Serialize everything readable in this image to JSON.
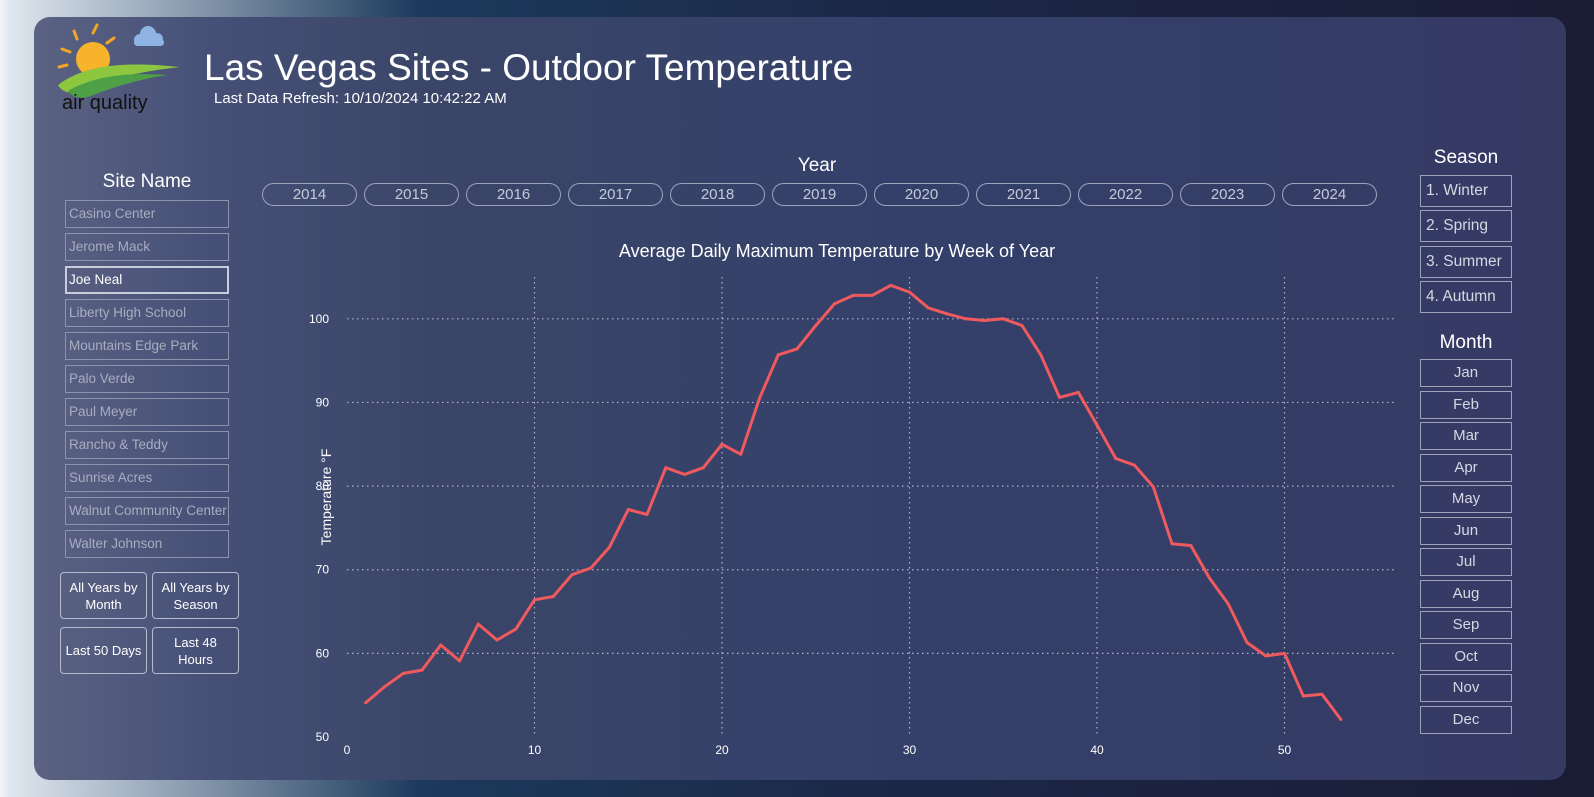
{
  "header": {
    "logo_text": "air quality",
    "title": "Las Vegas Sites - Outdoor Temperature",
    "refresh": "Last Data Refresh: 10/10/2024 10:42:22 AM"
  },
  "site_filter": {
    "label": "Site Name",
    "selected": "Joe Neal",
    "items": [
      "Casino Center",
      "Jerome Mack",
      "Joe Neal",
      "Liberty High School",
      "Mountains Edge Park",
      "Palo Verde",
      "Paul Meyer",
      "Rancho & Teddy",
      "Sunrise Acres",
      "Walnut Community Center",
      "Walter Johnson"
    ]
  },
  "nav_buttons": [
    "All Years by Month",
    "All Years by Season",
    "Last 50 Days",
    "Last 48 Hours"
  ],
  "year_filter": {
    "label": "Year",
    "items": [
      "2014",
      "2015",
      "2016",
      "2017",
      "2018",
      "2019",
      "2020",
      "2021",
      "2022",
      "2023",
      "2024"
    ]
  },
  "season_filter": {
    "label": "Season",
    "items": [
      "1. Winter",
      "2. Spring",
      "3. Summer",
      "4. Autumn"
    ]
  },
  "month_filter": {
    "label": "Month",
    "items": [
      "Jan",
      "Feb",
      "Mar",
      "Apr",
      "May",
      "Jun",
      "Jul",
      "Aug",
      "Sep",
      "Oct",
      "Nov",
      "Dec"
    ]
  },
  "colors": {
    "line": "#f05a5e",
    "grid": "#aeb3c6",
    "text": "#ffffff"
  },
  "chart_data": {
    "type": "line",
    "title": "Average Daily Maximum Temperature by Week of Year",
    "xlabel": "",
    "ylabel": "Temperature °F",
    "xlim": [
      0,
      56
    ],
    "ylim": [
      50,
      105
    ],
    "xticks": [
      0,
      10,
      20,
      30,
      40,
      50
    ],
    "yticks": [
      50,
      60,
      70,
      80,
      90,
      100
    ],
    "grid": "dotted",
    "series": [
      {
        "x": [
          1,
          2,
          3,
          4,
          5,
          6,
          7,
          8,
          9,
          10,
          11,
          12,
          13,
          14,
          15,
          16,
          17,
          18,
          19,
          20,
          21,
          22,
          23,
          24,
          25,
          26,
          27,
          28,
          29,
          30,
          31,
          32,
          33,
          34,
          35,
          36,
          37,
          38,
          39,
          40,
          41,
          42,
          43,
          44,
          45,
          46,
          47,
          48,
          49,
          50,
          51,
          52,
          53
        ],
        "y": [
          54.1,
          56.0,
          57.6,
          58.0,
          61.0,
          59.1,
          63.5,
          61.6,
          62.9,
          66.4,
          66.8,
          69.4,
          70.2,
          72.7,
          77.2,
          76.6,
          82.2,
          81.4,
          82.2,
          85.0,
          83.8,
          90.5,
          95.7,
          96.4,
          99.2,
          101.8,
          102.8,
          102.8,
          104.0,
          103.2,
          101.3,
          100.6,
          100.0,
          99.8,
          100.0,
          99.2,
          95.7,
          90.6,
          91.2,
          87.3,
          83.3,
          82.5,
          79.9,
          73.1,
          72.9,
          69.0,
          65.9,
          61.3,
          59.7,
          60.0,
          54.9,
          55.1,
          52.1
        ]
      }
    ]
  }
}
